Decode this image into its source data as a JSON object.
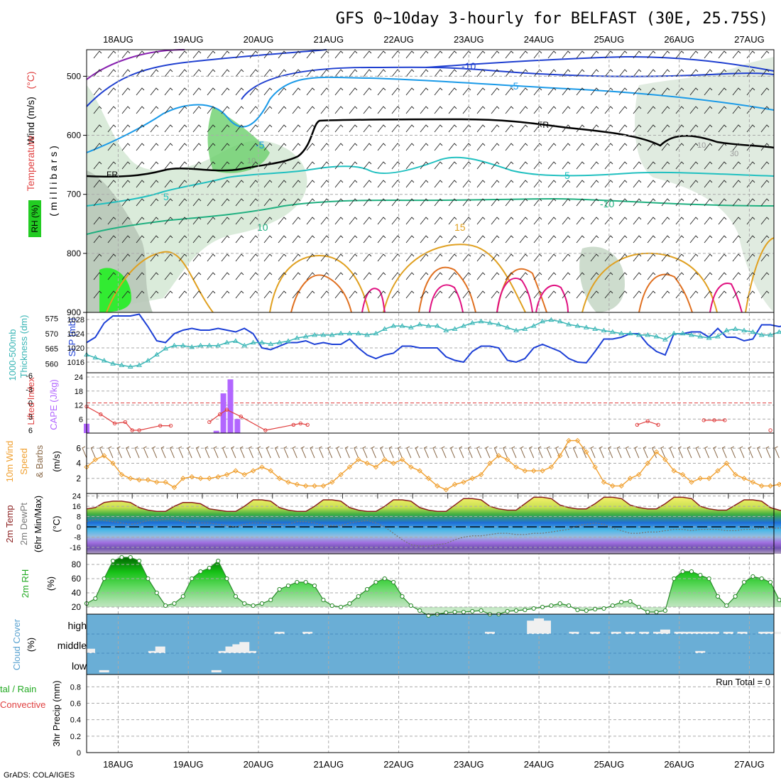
{
  "title": "GFS 0~10day 3-hourly for BELFAST (30E, 25.75S)",
  "credit": "GrADS: COLA/IGES",
  "run_total": "Run Total = 0",
  "dates": [
    "18AUG",
    "19AUG",
    "20AUG",
    "21AUG",
    "22AUG",
    "23AUG",
    "24AUG",
    "25AUG",
    "26AUG",
    "27AUG"
  ],
  "colors": {
    "frame": "#000000",
    "grid": "#aaaaaa",
    "slp": "#1c3fd6",
    "thickness": "#3ab6b6",
    "cape": "#b266ff",
    "lifted_index": "#e04040",
    "wind_speed": "#f0a030",
    "barbs": "#8a6a4a",
    "rh_green": "#22cc22",
    "cloud_bg": "#6aaed6",
    "cloud_fill": "#f0f0f0",
    "temp_line": "#8b2020",
    "dewpt_line": "#777777"
  },
  "panels": {
    "upper": {
      "labels": [
        {
          "text": "Wind (m/s)",
          "color": "#000000"
        },
        {
          "text": "Temperature",
          "color": "#e04040"
        },
        {
          "text": "(°C)",
          "color": "#e04040"
        },
        {
          "text": "RH (%)",
          "color": "#22aa22"
        },
        {
          "text": "( m i l l i b a r s )",
          "color": "#000000"
        }
      ],
      "ticks": [
        "500",
        "600",
        "700",
        "800",
        "900"
      ],
      "contour_labels": [
        "-10",
        "-5",
        "FR",
        "-5",
        "10",
        "5",
        "FR",
        "5",
        "10",
        "-10",
        "15",
        "10",
        "30"
      ]
    },
    "slp": {
      "left_label_1": "1000-500mb",
      "left_label_2": "Thickness (dm)",
      "right_label": "SLP (mb)",
      "left_ticks": [
        "575",
        "570",
        "565",
        "560"
      ],
      "right_ticks": [
        "1028",
        "1024",
        "1020",
        "1016"
      ]
    },
    "cape": {
      "left_label": "Lifted Index",
      "right_label": "CAPE (J/kg)",
      "left_ticks": [
        "-6",
        "-3",
        "0",
        "3",
        "6"
      ],
      "right_ticks": [
        "24",
        "18",
        "12",
        "6"
      ]
    },
    "wind": {
      "label_1": "10m Wind",
      "label_2": "Speed",
      "label_3": "& Barbs",
      "label_4": "(m/s)",
      "ticks": [
        "6",
        "4",
        "2"
      ]
    },
    "temp": {
      "label_1": "2m Temp",
      "label_2": "2m DewPt",
      "label_3": "(6hr Min/Max)",
      "label_4": "(°C)",
      "ticks": [
        "24",
        "16",
        "8",
        "0",
        "-8",
        "-16"
      ]
    },
    "rh2m": {
      "label_1": "2m RH",
      "label_2": "(%)",
      "ticks": [
        "80",
        "60",
        "40",
        "20"
      ]
    },
    "cloud": {
      "label_1": "Cloud Cover",
      "label_2": "(%)",
      "levels": [
        "high",
        "middle",
        "low"
      ]
    },
    "precip": {
      "label_1": "tal / Rain",
      "label_2": "Convective",
      "label_3": "3hr Precip (mm)",
      "ticks": [
        "0.8",
        "0.6",
        "0.4",
        "0.2",
        "0"
      ]
    }
  },
  "chart_data": [
    {
      "type": "line",
      "name": "SLP",
      "ylabel": "SLP (mb)",
      "ylim": [
        1013,
        1030
      ],
      "x_start_day": 17.55,
      "dx_days": 0.125,
      "values": [
        1021.5,
        1023,
        1027,
        1029,
        1029,
        1029,
        1029.5,
        1026,
        1022,
        1021.5,
        1024,
        1025,
        1025.5,
        1025,
        1025,
        1025.5,
        1025,
        1024.5,
        1025.5,
        1024,
        1020,
        1019.5,
        1020.5,
        1021.5,
        1021.5,
        1022,
        1021,
        1021.5,
        1021,
        1021,
        1022.5,
        1020,
        1018,
        1017,
        1018,
        1018.5,
        1020.5,
        1020.5,
        1020,
        1020,
        1020,
        1017.5,
        1016.5,
        1016,
        1019,
        1020.5,
        1020.5,
        1020,
        1016.5,
        1016,
        1017,
        1020,
        1021,
        1020,
        1019,
        1017,
        1016,
        1015.8,
        1019,
        1022.5,
        1022.5,
        1023,
        1024,
        1024,
        1021,
        1019,
        1018,
        1024,
        1024,
        1024.5,
        1024.5,
        1023,
        1025.5,
        1023,
        1023,
        1022,
        1022.5,
        1026.5,
        1026.5,
        1026,
        1026.5,
        1025.5,
        1025,
        1022,
        1022,
        1021.5,
        1021.5,
        1022
      ]
    },
    {
      "type": "line",
      "name": "Thickness",
      "ylabel": "1000-500mb Thickness (dm)",
      "ylim": [
        557,
        577
      ],
      "x_start_day": 17.55,
      "dx_days": 0.125,
      "values": [
        563,
        562,
        561,
        560,
        559.5,
        559,
        559.5,
        561,
        563,
        565,
        566,
        566,
        565.5,
        566,
        566,
        566,
        567,
        567.5,
        566,
        567,
        567,
        566.5,
        567,
        567.5,
        568.5,
        569,
        569.5,
        569.5,
        569.5,
        570,
        570,
        570,
        569.5,
        570,
        571.5,
        572.5,
        572.5,
        572,
        573,
        572.5,
        572.5,
        571,
        571.5,
        572.5,
        573.5,
        574,
        573.5,
        573,
        572,
        571,
        571.5,
        572.5,
        574,
        574.5,
        574,
        573,
        572.5,
        572,
        571.5,
        571,
        570.5,
        570,
        570,
        569.5,
        569.5,
        569,
        568,
        570,
        570,
        569.5,
        569,
        568.5,
        569,
        571,
        571.5,
        571,
        570.5,
        569.5,
        569.5,
        570.5,
        571,
        571,
        571.5,
        572,
        570.5,
        570,
        569.5,
        569
      ]
    },
    {
      "type": "bar",
      "name": "CAPE",
      "ylabel": "CAPE (J/kg)",
      "ylim": [
        0,
        24
      ],
      "x_day": [
        17.55,
        19.4,
        19.5,
        19.6,
        19.7
      ],
      "values": [
        4,
        1,
        17,
        23,
        6
      ]
    },
    {
      "type": "line",
      "name": "Lifted Index",
      "ylabel": "Lifted Index",
      "ylim": [
        6,
        -6
      ],
      "x_day": [
        17.55,
        17.75,
        17.95,
        18.1,
        18.2,
        18.3,
        18.6,
        18.75,
        19.3,
        19.45,
        19.55,
        19.75,
        20.1,
        20.5,
        20.6,
        20.7,
        25.4,
        25.55,
        25.7,
        26.35,
        26.5,
        26.65,
        27.3
      ],
      "values": [
        0.8,
        2.5,
        4.5,
        4.2,
        6,
        6,
        5,
        5,
        4.2,
        2.5,
        1.5,
        3,
        6,
        4.8,
        4.5,
        4.8,
        4.8,
        4,
        4.8,
        3.8,
        3.8,
        3.8,
        6
      ]
    },
    {
      "type": "line",
      "name": "10m Wind Speed",
      "ylabel": "Speed (m/s)",
      "ylim": [
        0,
        8
      ],
      "x_start_day": 17.55,
      "dx_days": 0.125,
      "values": [
        3.5,
        4.5,
        5,
        4,
        2.5,
        2,
        1.8,
        1.8,
        1.5,
        1.5,
        0.8,
        2,
        2.2,
        2,
        2,
        2.2,
        2.5,
        3,
        2.5,
        3,
        3.5,
        3,
        2,
        1.5,
        1.2,
        1,
        1,
        1,
        1.5,
        2.5,
        3.5,
        4.5,
        4,
        3.5,
        4.5,
        4,
        4.5,
        3.5,
        3,
        2,
        1,
        0.5,
        1.2,
        1.5,
        2,
        2.5,
        4,
        5,
        4.5,
        3.5,
        3,
        3,
        3,
        3.5,
        5,
        7,
        7,
        5.5,
        3.5,
        1.5,
        1,
        1,
        2,
        2.5,
        4,
        5.5,
        4.5,
        3,
        2.5,
        1.5,
        2,
        2,
        3,
        4,
        2.5,
        2,
        1.5,
        1,
        1,
        1.2,
        2,
        3,
        3,
        3.5,
        4.5,
        3,
        2,
        1.5
      ]
    },
    {
      "type": "area",
      "name": "2m Temp",
      "ylabel": "2m Temp (°C)",
      "ylim": [
        -21,
        26
      ],
      "x_start_day": 17.55,
      "dx_days": 0.125,
      "values": [
        14,
        15,
        19,
        20,
        20,
        19,
        15,
        13,
        12,
        12,
        16,
        19,
        19,
        18,
        14,
        13,
        12,
        12,
        16,
        21,
        21,
        20,
        15,
        13,
        12,
        12,
        16,
        21,
        21,
        20,
        15,
        13,
        12,
        12,
        16,
        21,
        21,
        20,
        15,
        13,
        12,
        12,
        17,
        22,
        22,
        21,
        16,
        14,
        13,
        13,
        18,
        23,
        23,
        22,
        17,
        15,
        14,
        14,
        18,
        23,
        23,
        22,
        17,
        15,
        14,
        14,
        18,
        23,
        23,
        22,
        16,
        14,
        13,
        13,
        17,
        21,
        21,
        20,
        15,
        13,
        12,
        12,
        17,
        22,
        22,
        21,
        16,
        14
      ]
    },
    {
      "type": "line",
      "name": "2m DewPt",
      "ylabel": "2m DewPt (°C)",
      "ylim": [
        -21,
        26
      ],
      "x_start_day": 17.55,
      "dx_days": 0.125,
      "values": [
        4,
        6,
        5,
        4,
        3,
        2,
        3,
        5,
        5,
        6,
        6,
        4,
        3,
        3,
        3,
        2,
        1,
        0,
        2,
        3,
        3,
        2,
        2,
        2,
        4,
        4,
        3,
        1,
        1,
        1,
        3,
        4,
        5,
        3,
        0,
        -5,
        -10,
        -14,
        -15,
        -15,
        -14,
        -13,
        -10,
        -8,
        -7,
        -7,
        -6,
        -5,
        -5,
        -6,
        -6,
        -5,
        -5,
        -4,
        -3,
        -2,
        1,
        2,
        3,
        2,
        -1,
        -3,
        -5,
        -5,
        -4,
        -4,
        -3,
        -2,
        -2,
        -3,
        -2,
        -2,
        -2,
        -3,
        -3,
        -2,
        -2,
        -1,
        -1,
        -1,
        0,
        1,
        2,
        3,
        4,
        4,
        4,
        4
      ]
    },
    {
      "type": "area",
      "name": "2m RH",
      "ylabel": "2m RH (%)",
      "ylim": [
        10,
        95
      ],
      "x_start_day": 17.55,
      "dx_days": 0.125,
      "values": [
        25,
        32,
        60,
        85,
        90,
        90,
        85,
        60,
        40,
        22,
        25,
        35,
        60,
        70,
        75,
        85,
        60,
        35,
        25,
        22,
        25,
        30,
        45,
        50,
        55,
        55,
        50,
        30,
        22,
        20,
        25,
        35,
        45,
        55,
        60,
        55,
        35,
        22,
        15,
        8,
        10,
        12,
        13,
        13,
        14,
        15,
        10,
        10,
        14,
        15,
        16,
        18,
        20,
        22,
        25,
        22,
        16,
        15,
        17,
        18,
        22,
        27,
        28,
        20,
        13,
        13,
        15,
        60,
        70,
        70,
        65,
        60,
        35,
        22,
        35,
        55,
        63,
        60,
        55,
        30,
        18,
        20,
        40,
        45,
        50,
        55,
        40,
        35
      ]
    },
    {
      "type": "bar",
      "name": "Cloud Cover",
      "ylabel": "Cloud Cover (%)",
      "series": [
        {
          "name": "high",
          "x_day": [
            20.3,
            20.7,
            23.3,
            23.9,
            24.0,
            24.1,
            24.5,
            24.8,
            25.1,
            25.3,
            25.5,
            25.7,
            25.8,
            26.0,
            26.1,
            26.2,
            26.3,
            26.4,
            26.5,
            26.7,
            26.9,
            27.2,
            27.3,
            27.4
          ],
          "values": [
            5,
            5,
            5,
            30,
            35,
            30,
            5,
            5,
            5,
            5,
            5,
            5,
            10,
            5,
            5,
            5,
            5,
            5,
            5,
            5,
            5,
            5,
            5,
            5
          ]
        },
        {
          "name": "middle",
          "x_day": [
            17.6,
            18.5,
            18.6,
            19.5,
            19.6,
            19.7,
            19.8,
            19.9,
            26.3
          ],
          "values": [
            10,
            5,
            15,
            5,
            15,
            20,
            25,
            5,
            5
          ]
        },
        {
          "name": "low",
          "x_day": [
            17.8,
            19.4
          ],
          "values": [
            5,
            5
          ]
        }
      ]
    },
    {
      "type": "bar",
      "name": "3hr Precip",
      "ylabel": "3hr Precip (mm)",
      "ylim": [
        0,
        0.95
      ],
      "values": []
    }
  ]
}
